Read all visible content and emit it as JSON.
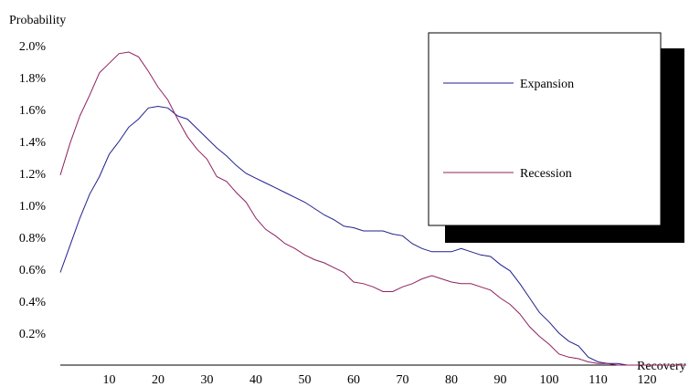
{
  "chart_data": {
    "type": "line",
    "ylabel": "Probability",
    "xlabel": "Recovery Rate",
    "xlim": [
      0,
      130
    ],
    "ylim": [
      0,
      2.0
    ],
    "x_ticks": [
      10,
      20,
      30,
      40,
      50,
      60,
      70,
      80,
      90,
      100,
      110,
      120
    ],
    "y_ticks": [
      "0.2%",
      "0.4%",
      "0.6%",
      "0.8%",
      "1.0%",
      "1.2%",
      "1.4%",
      "1.6%",
      "1.8%",
      "2.0%"
    ],
    "y_tick_values": [
      0.2,
      0.4,
      0.6,
      0.8,
      1.0,
      1.2,
      1.4,
      1.6,
      1.8,
      2.0
    ],
    "legend_position": "top-right",
    "grid": false,
    "series": [
      {
        "name": "Expansion",
        "color": "#1f1f8f",
        "x": [
          0,
          2,
          4,
          6,
          8,
          10,
          12,
          14,
          16,
          18,
          20,
          22,
          24,
          26,
          28,
          30,
          32,
          34,
          36,
          38,
          40,
          42,
          44,
          46,
          48,
          50,
          52,
          54,
          56,
          58,
          60,
          62,
          64,
          66,
          68,
          70,
          72,
          74,
          76,
          78,
          80,
          82,
          84,
          86,
          88,
          90,
          92,
          94,
          96,
          98,
          100,
          102,
          104,
          106,
          108,
          110,
          112,
          114,
          116,
          118,
          120,
          124,
          128
        ],
        "values": [
          0.58,
          0.75,
          0.92,
          1.07,
          1.18,
          1.32,
          1.4,
          1.49,
          1.54,
          1.61,
          1.62,
          1.61,
          1.56,
          1.54,
          1.48,
          1.42,
          1.36,
          1.31,
          1.25,
          1.2,
          1.17,
          1.14,
          1.11,
          1.08,
          1.05,
          1.02,
          0.98,
          0.94,
          0.91,
          0.87,
          0.86,
          0.84,
          0.84,
          0.84,
          0.82,
          0.81,
          0.76,
          0.73,
          0.71,
          0.71,
          0.71,
          0.73,
          0.71,
          0.69,
          0.68,
          0.63,
          0.59,
          0.51,
          0.42,
          0.33,
          0.27,
          0.2,
          0.15,
          0.12,
          0.05,
          0.02,
          0.01,
          0.01,
          0.0,
          0.0,
          0.0,
          0.0,
          0.0
        ]
      },
      {
        "name": "Recession",
        "color": "#8f2060",
        "x": [
          0,
          2,
          4,
          6,
          8,
          10,
          12,
          14,
          16,
          18,
          20,
          22,
          24,
          26,
          28,
          30,
          32,
          34,
          36,
          38,
          40,
          42,
          44,
          46,
          48,
          50,
          52,
          54,
          56,
          58,
          60,
          62,
          64,
          66,
          68,
          70,
          72,
          74,
          76,
          78,
          80,
          82,
          84,
          86,
          88,
          90,
          92,
          94,
          96,
          98,
          100,
          102,
          104,
          106,
          108,
          110,
          112,
          114,
          116,
          118,
          120,
          124,
          128
        ],
        "values": [
          1.19,
          1.39,
          1.56,
          1.69,
          1.83,
          1.89,
          1.95,
          1.96,
          1.93,
          1.84,
          1.74,
          1.66,
          1.54,
          1.43,
          1.35,
          1.29,
          1.18,
          1.15,
          1.08,
          1.02,
          0.92,
          0.85,
          0.81,
          0.76,
          0.73,
          0.69,
          0.66,
          0.64,
          0.61,
          0.58,
          0.52,
          0.51,
          0.49,
          0.46,
          0.46,
          0.49,
          0.51,
          0.54,
          0.56,
          0.54,
          0.52,
          0.51,
          0.51,
          0.49,
          0.47,
          0.42,
          0.38,
          0.32,
          0.24,
          0.18,
          0.13,
          0.07,
          0.05,
          0.04,
          0.02,
          0.01,
          0.01,
          0.0,
          0.0,
          0.0,
          0.0,
          0.0,
          0.0
        ]
      }
    ]
  }
}
